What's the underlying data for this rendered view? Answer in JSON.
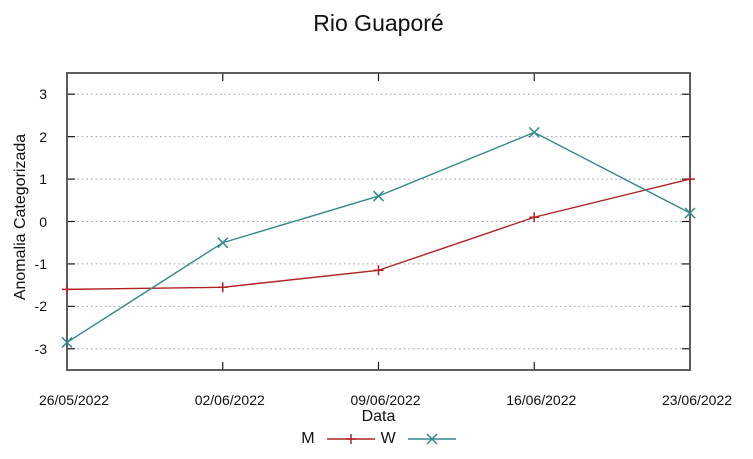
{
  "chart_data": {
    "type": "line",
    "title": "Rio Guaporé",
    "xlabel": "Data",
    "ylabel": "Anomalia Categorizada",
    "categories": [
      "26/05/2022",
      "02/06/2022",
      "09/06/2022",
      "16/06/2022",
      "23/06/2022"
    ],
    "series": [
      {
        "name": "M",
        "color": "#b02222",
        "marker": "plus",
        "marker_icon": "plus-marker-icon",
        "values": [
          -1.6,
          -1.55,
          -1.15,
          0.1,
          1.0
        ]
      },
      {
        "name": "W",
        "color": "#33898c",
        "marker": "cross",
        "marker_icon": "cross-marker-icon",
        "values": [
          -2.85,
          -0.5,
          0.6,
          2.1,
          0.2
        ]
      }
    ],
    "ylim": [
      -3.5,
      3.5
    ],
    "yticks": [
      -3,
      -2,
      -1,
      0,
      1,
      2,
      3
    ],
    "grid": true,
    "grid_style": "dotted",
    "legend_position": "bottom-center",
    "colors": {
      "border": "#4d4d4d",
      "tick": "#1a1a1a",
      "gridline": "#9e9e9e",
      "text": "#111111",
      "background": "#ffffff"
    }
  }
}
